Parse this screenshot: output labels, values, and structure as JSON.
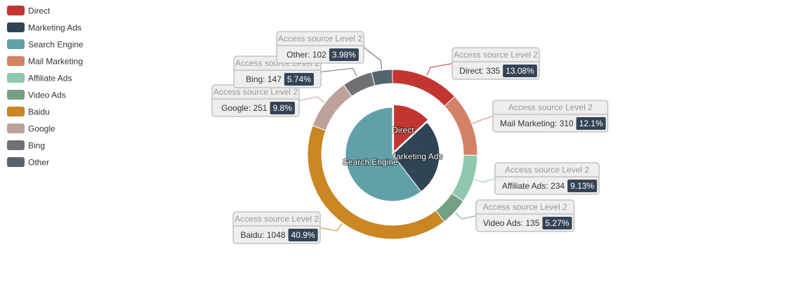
{
  "chart_data": {
    "type": "pie",
    "legend": {
      "position": "top-left",
      "items": [
        {
          "name": "Direct",
          "color": "#c23531"
        },
        {
          "name": "Marketing Ads",
          "color": "#2f4554"
        },
        {
          "name": "Search Engine",
          "color": "#61a0a8"
        },
        {
          "name": "Mail Marketing",
          "color": "#d48265"
        },
        {
          "name": "Affiliate Ads",
          "color": "#91c7ae"
        },
        {
          "name": "Video Ads",
          "color": "#749f83"
        },
        {
          "name": "Baidu",
          "color": "#ca8622"
        },
        {
          "name": "Google",
          "color": "#bda29a"
        },
        {
          "name": "Bing",
          "color": "#6e7074"
        },
        {
          "name": "Other",
          "color": "#546570"
        }
      ]
    },
    "series": [
      {
        "ring": "inner",
        "slices": [
          {
            "name": "Direct",
            "value": 335,
            "color": "#c23531"
          },
          {
            "name": "Marketing Ads",
            "value": 679,
            "color": "#2f4554"
          },
          {
            "name": "Search Engine",
            "value": 1548,
            "color": "#61a0a8"
          }
        ]
      },
      {
        "ring": "outer",
        "label_title": "Access source Level 2",
        "slices": [
          {
            "name": "Direct",
            "value": 335,
            "percent": "13.08%",
            "color": "#c23531"
          },
          {
            "name": "Mail Marketing",
            "value": 310,
            "percent": "12.1%",
            "color": "#d48265"
          },
          {
            "name": "Affiliate Ads",
            "value": 234,
            "percent": "9.13%",
            "color": "#91c7ae"
          },
          {
            "name": "Video Ads",
            "value": 135,
            "percent": "5.27%",
            "color": "#749f83"
          },
          {
            "name": "Baidu",
            "value": 1048,
            "percent": "40.9%",
            "color": "#ca8622"
          },
          {
            "name": "Google",
            "value": 251,
            "percent": "9.8%",
            "color": "#bda29a"
          },
          {
            "name": "Bing",
            "value": 147,
            "percent": "5.74%",
            "color": "#6e7074"
          },
          {
            "name": "Other",
            "value": 102,
            "percent": "3.98%",
            "color": "#546570"
          }
        ]
      }
    ]
  }
}
